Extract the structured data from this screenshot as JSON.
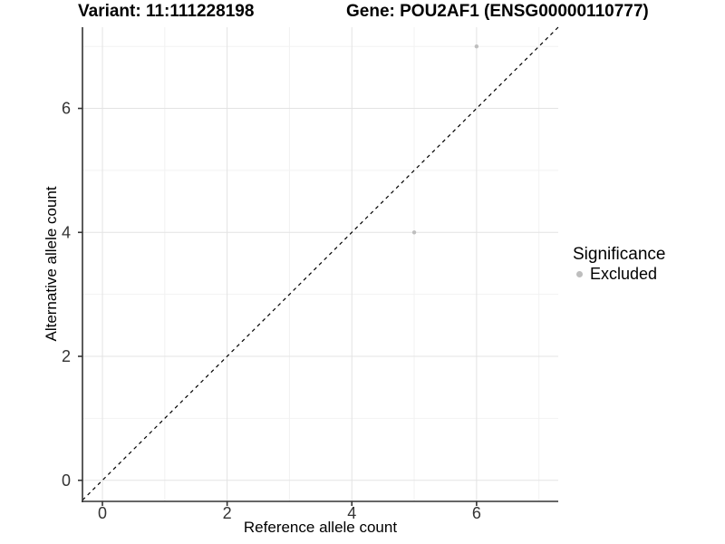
{
  "chart_data": {
    "type": "scatter",
    "title_left": "Variant: 11:111228198",
    "title_right": "Gene: POU2AF1 (ENSG00000110777)",
    "xlabel": "Reference allele count",
    "ylabel": "Alternative allele count",
    "xlim": [
      -0.32,
      7.31
    ],
    "ylim": [
      -0.34,
      7.31
    ],
    "x_ticks": [
      0,
      2,
      4,
      6
    ],
    "y_ticks": [
      0,
      2,
      4,
      6
    ],
    "x_minor_gridlines": [
      1,
      3,
      5,
      7
    ],
    "y_minor_gridlines": [
      1,
      3,
      5,
      7
    ],
    "grid": "on",
    "series": [
      {
        "name": "Excluded",
        "color": "#bebebe",
        "points": [
          [
            5,
            4
          ],
          [
            6,
            7
          ]
        ]
      }
    ],
    "reference_line": {
      "slope": 1,
      "intercept": 0,
      "style": "dashed",
      "color": "#000000"
    },
    "legend": {
      "title": "Significance",
      "position": "right",
      "items": [
        {
          "label": "Excluded",
          "color": "#bebebe"
        }
      ]
    },
    "colors": {
      "grid_major": "#e3e3e3",
      "grid_minor": "#f2f2f2",
      "axis_line": "#333333",
      "tick_text": "#333333"
    }
  }
}
